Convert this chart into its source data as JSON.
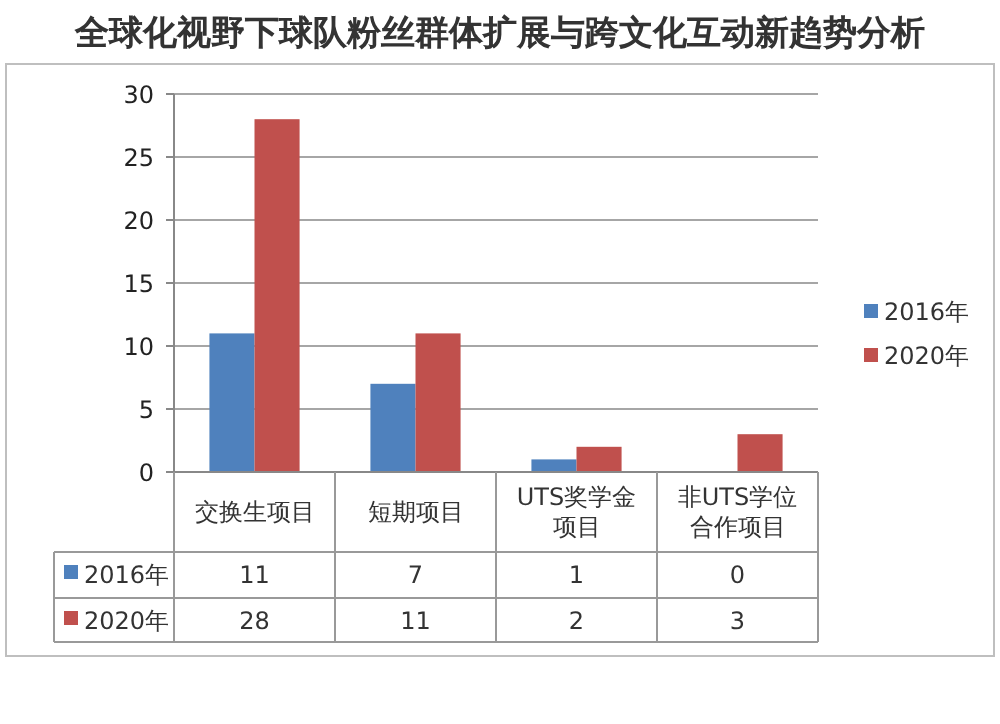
{
  "chart_data": {
    "type": "bar",
    "title": "全球化视野下球队粉丝群体扩展与跨文化互动新趋势分析",
    "categories": [
      "交换生项目",
      "短期项目",
      "UTS奖学金项目",
      "非UTS学位合作项目"
    ],
    "series": [
      {
        "name": "2016年",
        "color": "#4f81bd",
        "values": [
          11,
          7,
          1,
          0
        ]
      },
      {
        "name": "2020年",
        "color": "#c0504d",
        "values": [
          28,
          11,
          2,
          3
        ]
      }
    ],
    "ylim": [
      0,
      30
    ],
    "yticks": [
      0,
      5,
      10,
      15,
      20,
      25,
      30
    ],
    "grid": "y",
    "legend": "right",
    "data_labels": true
  }
}
